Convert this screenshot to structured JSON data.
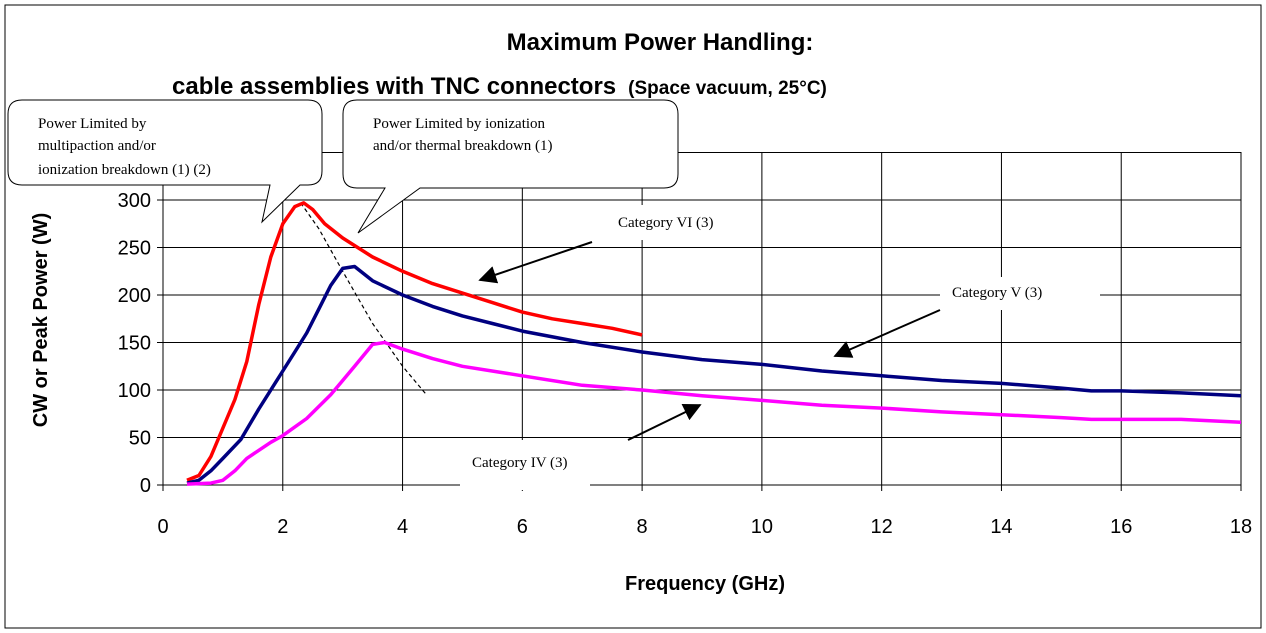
{
  "chart_data": {
    "type": "line",
    "title": "Maximum Power Handling:",
    "subtitle": "cable assemblies with TNC connectors",
    "subtitle_note": "(Space vacuum, 25°C)",
    "xlabel": "Frequency (GHz)",
    "ylabel": "CW or Peak Power (W)",
    "xlim": [
      0,
      18
    ],
    "xticks": [
      0,
      2,
      4,
      6,
      8,
      10,
      12,
      14,
      16,
      18
    ],
    "ylim": [
      0,
      350
    ],
    "yticks": [
      0,
      50,
      100,
      150,
      200,
      250,
      300
    ],
    "grid": true,
    "series": [
      {
        "name": "Category VI (3)",
        "color": "#ff0000",
        "x": [
          0.4,
          0.6,
          0.8,
          1.0,
          1.2,
          1.4,
          1.6,
          1.8,
          2.0,
          2.2,
          2.35,
          2.5,
          2.7,
          3.0,
          3.5,
          4.0,
          4.5,
          5.0,
          5.5,
          6,
          6.5,
          7,
          7.5,
          8
        ],
        "values": [
          5,
          10,
          30,
          60,
          90,
          130,
          190,
          240,
          275,
          293,
          297,
          290,
          275,
          260,
          240,
          225,
          212,
          202,
          192,
          182,
          175,
          170,
          165,
          158
        ]
      },
      {
        "name": "Category V (3)",
        "color": "#000080",
        "x": [
          0.4,
          0.6,
          0.8,
          1.0,
          1.3,
          1.6,
          2.0,
          2.2,
          2.4,
          2.6,
          2.8,
          3.0,
          3.2,
          3.5,
          4,
          4.5,
          5,
          5.5,
          6,
          7,
          8,
          9,
          10,
          11,
          12,
          13,
          14,
          15,
          15.5,
          16,
          17,
          18
        ],
        "values": [
          2,
          5,
          15,
          28,
          48,
          80,
          120,
          140,
          160,
          185,
          210,
          228,
          230,
          215,
          200,
          188,
          178,
          170,
          162,
          150,
          140,
          132,
          127,
          120,
          115,
          110,
          107,
          102,
          99,
          99,
          97,
          94
        ]
      },
      {
        "name": "Category IV (3)",
        "color": "#ff00ff",
        "x": [
          0.4,
          0.8,
          1.0,
          1.2,
          1.4,
          1.8,
          2.0,
          2.4,
          2.8,
          3.2,
          3.5,
          3.7,
          4,
          4.5,
          5,
          6,
          7,
          8,
          9,
          10,
          11,
          12,
          13,
          14,
          15,
          15.5,
          16,
          17,
          18
        ],
        "values": [
          1,
          2,
          5,
          15,
          28,
          45,
          52,
          70,
          95,
          125,
          148,
          150,
          143,
          133,
          125,
          115,
          105,
          100,
          94,
          89,
          84,
          81,
          77,
          74,
          71,
          69,
          69,
          69,
          66
        ]
      }
    ],
    "dashed_curve": {
      "x": [
        2.3,
        2.6,
        3.0,
        3.5,
        4.0,
        4.4
      ],
      "values": [
        297,
        270,
        225,
        170,
        125,
        95
      ],
      "color": "#000000"
    },
    "annotations": [
      [
        "Power Limited by",
        "multipaction and/or",
        "ionization  breakdown (1) (2)"
      ],
      [
        "Power Limited by ionization",
        "and/or thermal breakdown (1)"
      ]
    ]
  }
}
